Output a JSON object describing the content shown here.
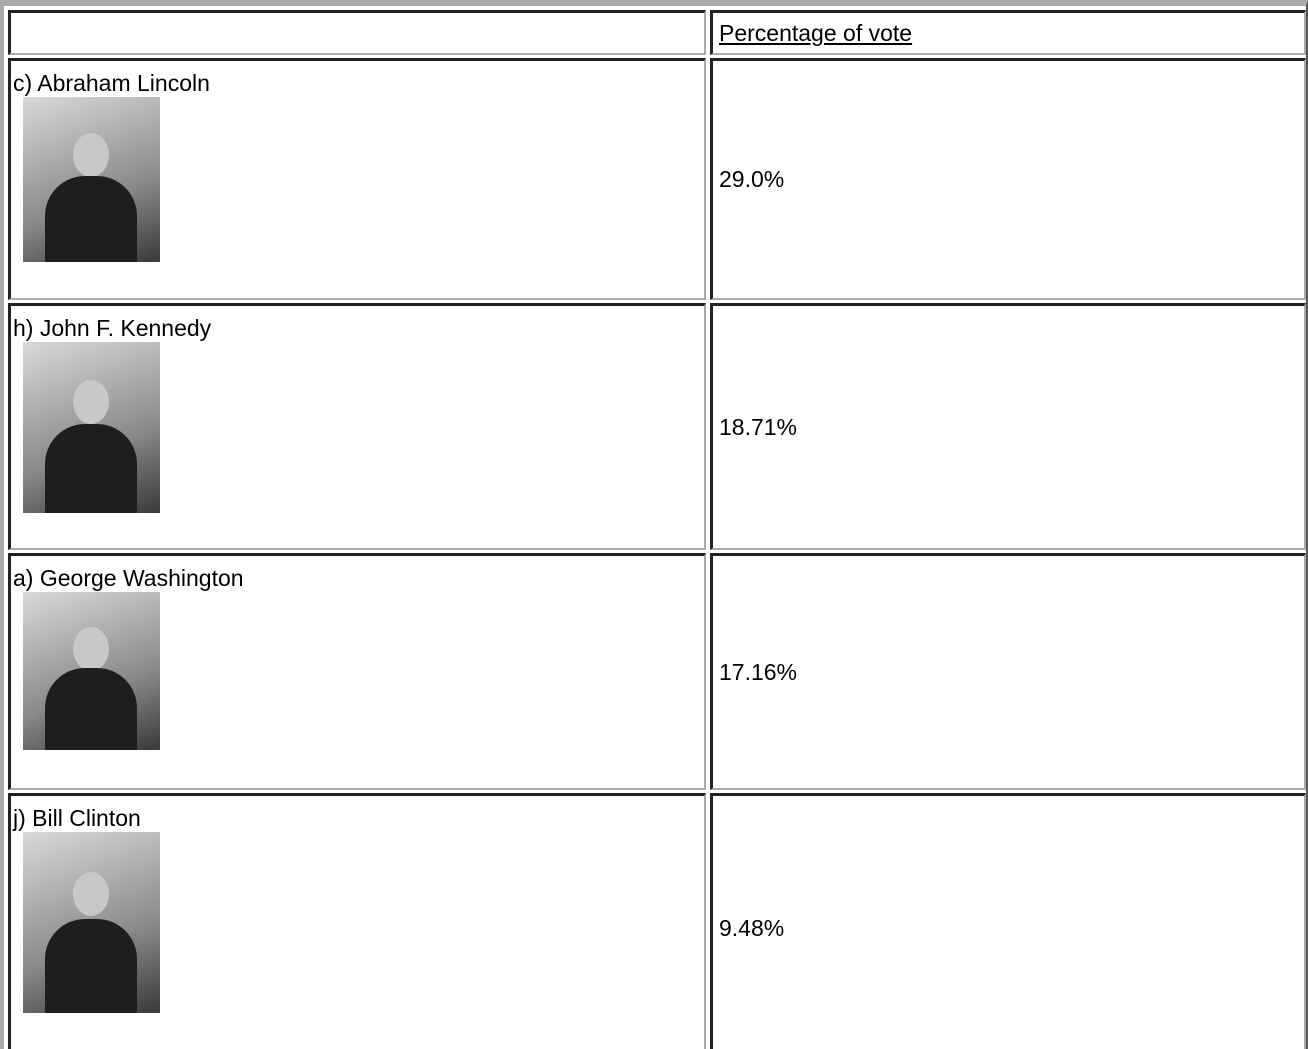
{
  "table": {
    "header": {
      "label": "Percentage of vote"
    },
    "rows": [
      {
        "name": "c) Abraham Lincoln",
        "percentage": "29.0%"
      },
      {
        "name": "h) John F. Kennedy",
        "percentage": "18.71%"
      },
      {
        "name": "a) George Washington",
        "percentage": "17.16%"
      },
      {
        "name": "j) Bill Clinton",
        "percentage": "9.48%"
      }
    ]
  }
}
